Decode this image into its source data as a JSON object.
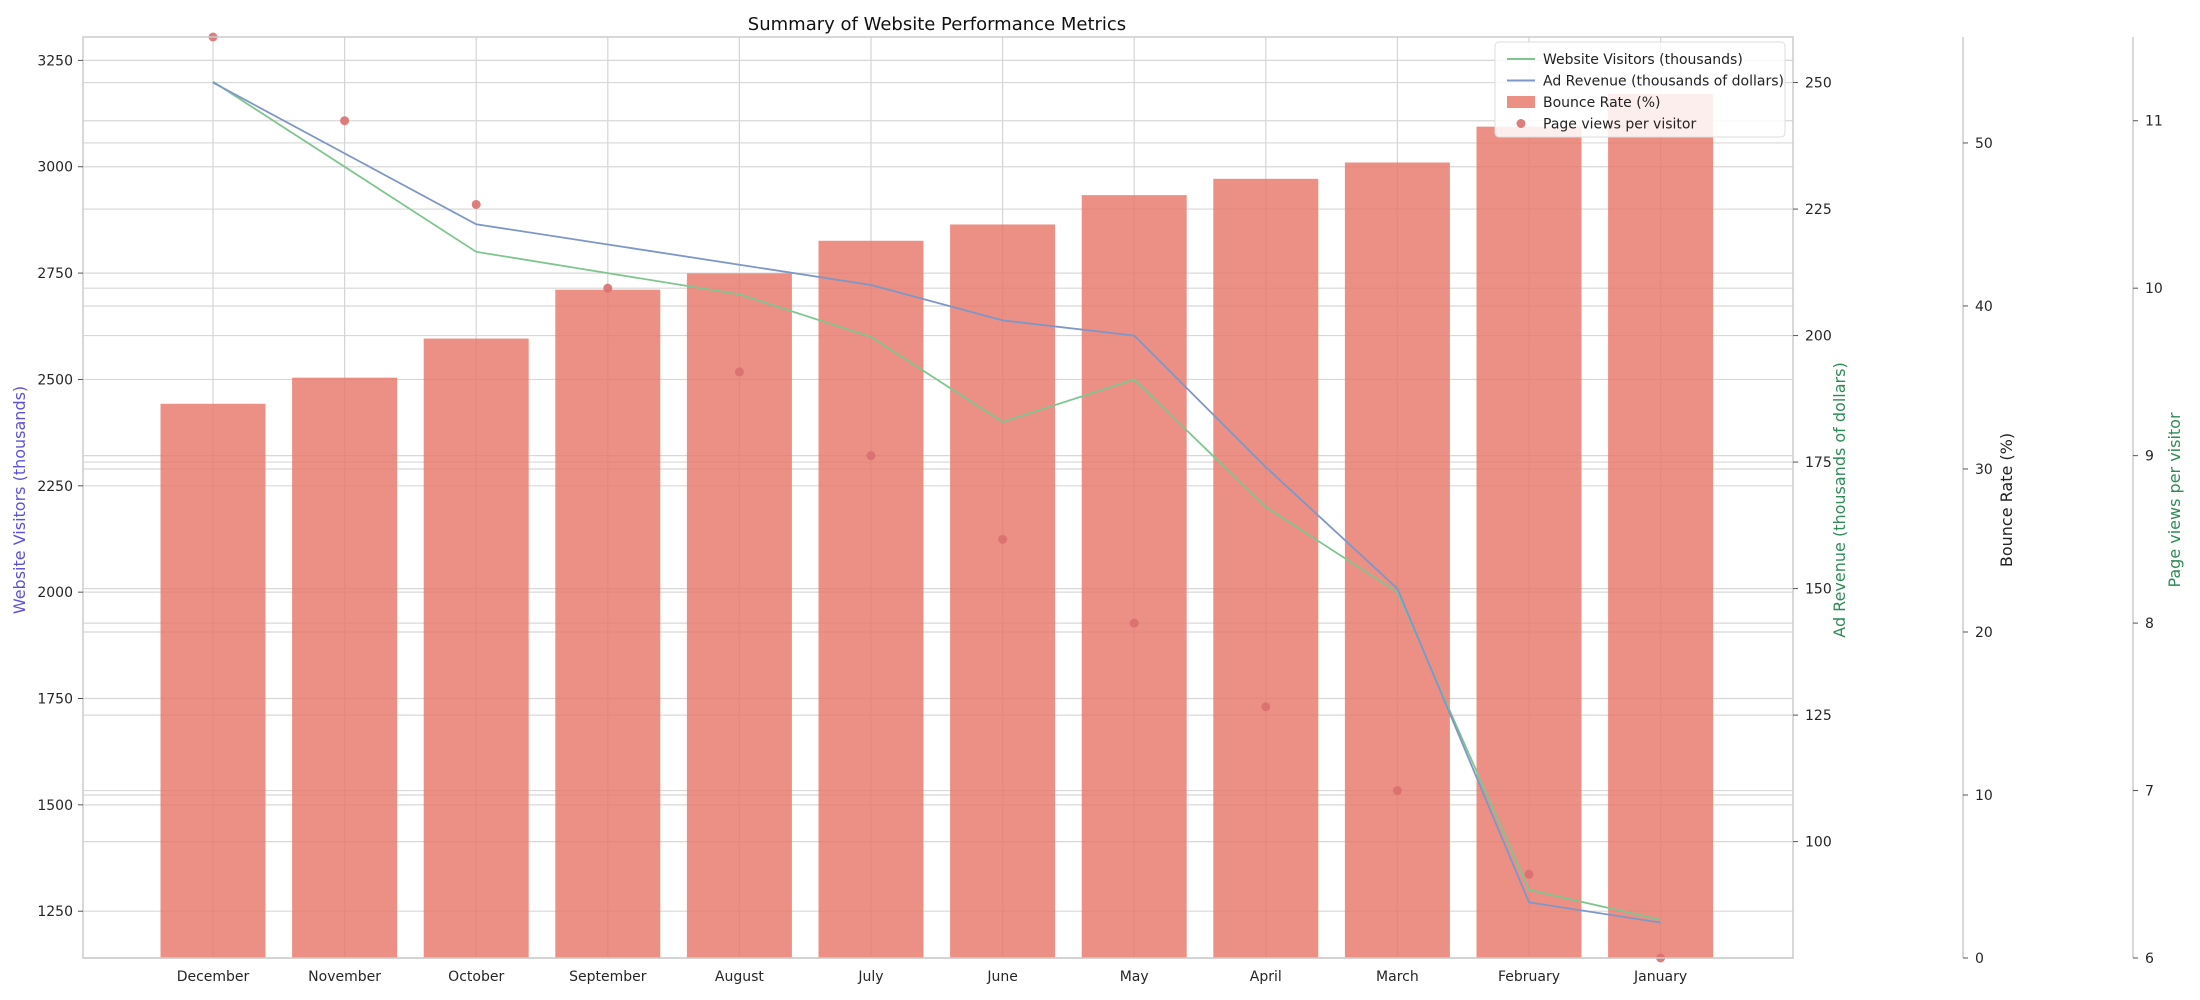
{
  "chart_data": {
    "type": "bar",
    "title": "Summary of Website Performance Metrics",
    "categories": [
      "December",
      "November",
      "October",
      "September",
      "August",
      "July",
      "June",
      "May",
      "April",
      "March",
      "February",
      "January"
    ],
    "grid": true,
    "legend_placement": "top-right",
    "colors": {
      "visitors": "#80c58f",
      "revenue": "#7e97c6",
      "bounce": "#e8776a",
      "pageviews": "#d97070",
      "visitors_label": "#5b52d6",
      "revenue_label": "#2e8b57",
      "pageviews_label": "#2e8b57",
      "bounce_label": "#222222"
    },
    "axes": {
      "visitors": {
        "label": "Website Visitors (thousands)",
        "ylim": [
          1140,
          3305
        ],
        "ticks": [
          1250,
          1500,
          1750,
          2000,
          2250,
          2500,
          2750,
          3000,
          3250
        ]
      },
      "revenue": {
        "label": "Ad Revenue (thousands of dollars)",
        "ylim": [
          77,
          259
        ],
        "ticks": [
          100,
          125,
          150,
          175,
          200,
          225,
          250
        ]
      },
      "bounce": {
        "label": "Bounce Rate (%)",
        "ylim": [
          0,
          56.5
        ],
        "ticks": [
          0,
          10,
          20,
          30,
          40,
          50
        ]
      },
      "pageviews": {
        "label": "Page views per visitor",
        "ylim": [
          6,
          11.5
        ],
        "ticks": [
          6,
          7,
          8,
          9,
          10,
          11
        ]
      }
    },
    "series": [
      {
        "name": "Website Visitors (thousands)",
        "type": "line",
        "axis": "visitors",
        "values": [
          3200,
          3000,
          2800,
          2750,
          2700,
          2600,
          2400,
          2500,
          2200,
          2000,
          1300,
          1230
        ]
      },
      {
        "name": "Ad Revenue (thousands of dollars)",
        "type": "line",
        "axis": "revenue",
        "values": [
          250,
          236,
          222,
          218,
          214,
          210,
          203,
          200,
          174,
          150,
          88,
          84
        ]
      },
      {
        "name": "Bounce Rate (%)",
        "type": "bar",
        "axis": "bounce",
        "values": [
          34,
          35.6,
          38,
          41,
          42,
          44,
          45,
          46.8,
          47.8,
          48.8,
          51,
          53
        ]
      },
      {
        "name": "Page views per visitor",
        "type": "scatter",
        "axis": "pageviews",
        "values": [
          11.5,
          11.0,
          10.5,
          10.0,
          9.5,
          9.0,
          8.5,
          8.0,
          7.5,
          7.0,
          6.5,
          6.0
        ]
      }
    ]
  }
}
